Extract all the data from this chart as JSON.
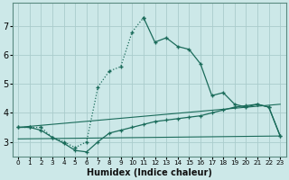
{
  "xlabel": "Humidex (Indice chaleur)",
  "bg_color": "#cce8e8",
  "grid_color": "#aacccc",
  "line_color": "#1a6b5a",
  "xlim": [
    -0.5,
    23.5
  ],
  "ylim": [
    2.5,
    7.8
  ],
  "yticks": [
    3,
    4,
    5,
    6,
    7
  ],
  "xticks": [
    0,
    1,
    2,
    3,
    4,
    5,
    6,
    7,
    8,
    9,
    10,
    11,
    12,
    13,
    14,
    15,
    16,
    17,
    18,
    19,
    20,
    21,
    22,
    23
  ],
  "dotted_x": [
    0,
    1,
    2,
    3,
    4,
    5,
    6,
    7,
    8,
    9,
    10,
    11
  ],
  "dotted_y": [
    3.5,
    3.5,
    3.5,
    3.15,
    3.0,
    2.8,
    3.0,
    4.9,
    5.45,
    5.6,
    6.8,
    7.3
  ],
  "solid_x": [
    11,
    12,
    13,
    14,
    15,
    16,
    17,
    18,
    19,
    20,
    21,
    22,
    23
  ],
  "solid_y": [
    7.3,
    6.45,
    6.6,
    6.3,
    6.2,
    5.7,
    4.6,
    4.7,
    4.3,
    4.2,
    4.3,
    4.2,
    3.2
  ],
  "lower_x": [
    0,
    1,
    2,
    3,
    4,
    5,
    6,
    7,
    8,
    9,
    10,
    11,
    12,
    13,
    14,
    15,
    16,
    17,
    18,
    19,
    20,
    21,
    22,
    23
  ],
  "lower_y": [
    3.5,
    3.5,
    3.4,
    3.15,
    2.95,
    2.7,
    2.65,
    3.0,
    3.3,
    3.4,
    3.5,
    3.6,
    3.7,
    3.75,
    3.8,
    3.85,
    3.9,
    4.0,
    4.1,
    4.2,
    4.25,
    4.3,
    4.2,
    3.2
  ],
  "ref_line1_x": [
    0,
    23
  ],
  "ref_line1_y": [
    3.1,
    3.2
  ],
  "ref_line2_x": [
    0,
    23
  ],
  "ref_line2_y": [
    3.5,
    4.3
  ]
}
